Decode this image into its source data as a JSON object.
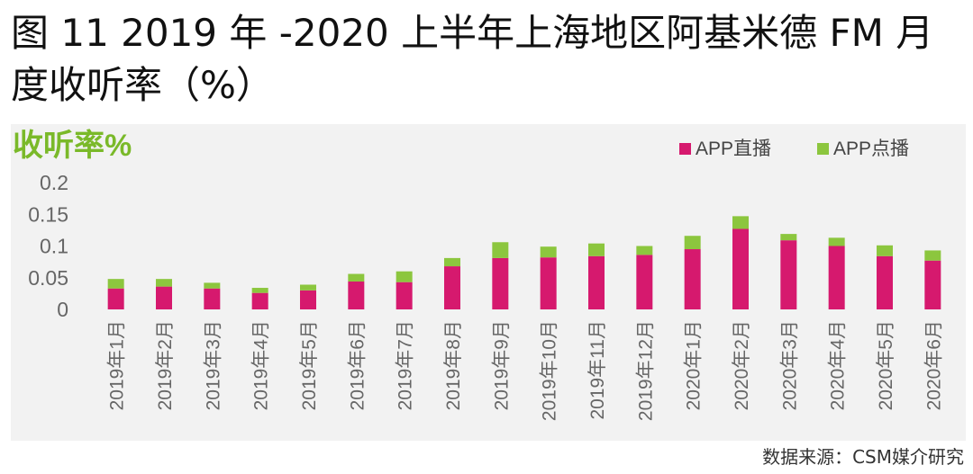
{
  "figure": {
    "title": "图 11 2019 年 -2020 上半年上海地区阿基米德 FM 月度收听率（%）",
    "source": "数据来源：CSM媒介研究"
  },
  "colors": {
    "live": "#d6196e",
    "ondemand": "#8cc63e",
    "ylabel": "#7ab929",
    "axis_text": "#666666",
    "panel_bg": "#f2f2f2"
  },
  "chart_data": {
    "type": "bar",
    "stacked": true,
    "title": "",
    "xlabel": "",
    "ylabel": "收听率%",
    "ylim": [
      0,
      0.2
    ],
    "yticks": [
      "0.2",
      "0.15",
      "0.1",
      "0.05",
      "0"
    ],
    "ytick_values": [
      0.2,
      0.15,
      0.1,
      0.05,
      0
    ],
    "grid": false,
    "legend_position": "top-right",
    "categories": [
      "2019年1月",
      "2019年2月",
      "2019年3月",
      "2019年4月",
      "2019年5月",
      "2019年6月",
      "2019年7月",
      "2019年8月",
      "2019年9月",
      "2019年10月",
      "2019年11月",
      "2019年12月",
      "2020年1月",
      "2020年2月",
      "2020年3月",
      "2020年4月",
      "2020年5月",
      "2020年6月"
    ],
    "series": [
      {
        "name": "APP直播",
        "color": "#d6196e",
        "values": [
          0.033,
          0.036,
          0.033,
          0.026,
          0.03,
          0.044,
          0.043,
          0.068,
          0.081,
          0.082,
          0.084,
          0.086,
          0.095,
          0.127,
          0.109,
          0.1,
          0.084,
          0.077
        ]
      },
      {
        "name": "APP点播",
        "color": "#8cc63e",
        "values": [
          0.015,
          0.012,
          0.009,
          0.008,
          0.009,
          0.012,
          0.017,
          0.013,
          0.025,
          0.017,
          0.02,
          0.014,
          0.021,
          0.02,
          0.01,
          0.013,
          0.017,
          0.016
        ]
      }
    ]
  }
}
